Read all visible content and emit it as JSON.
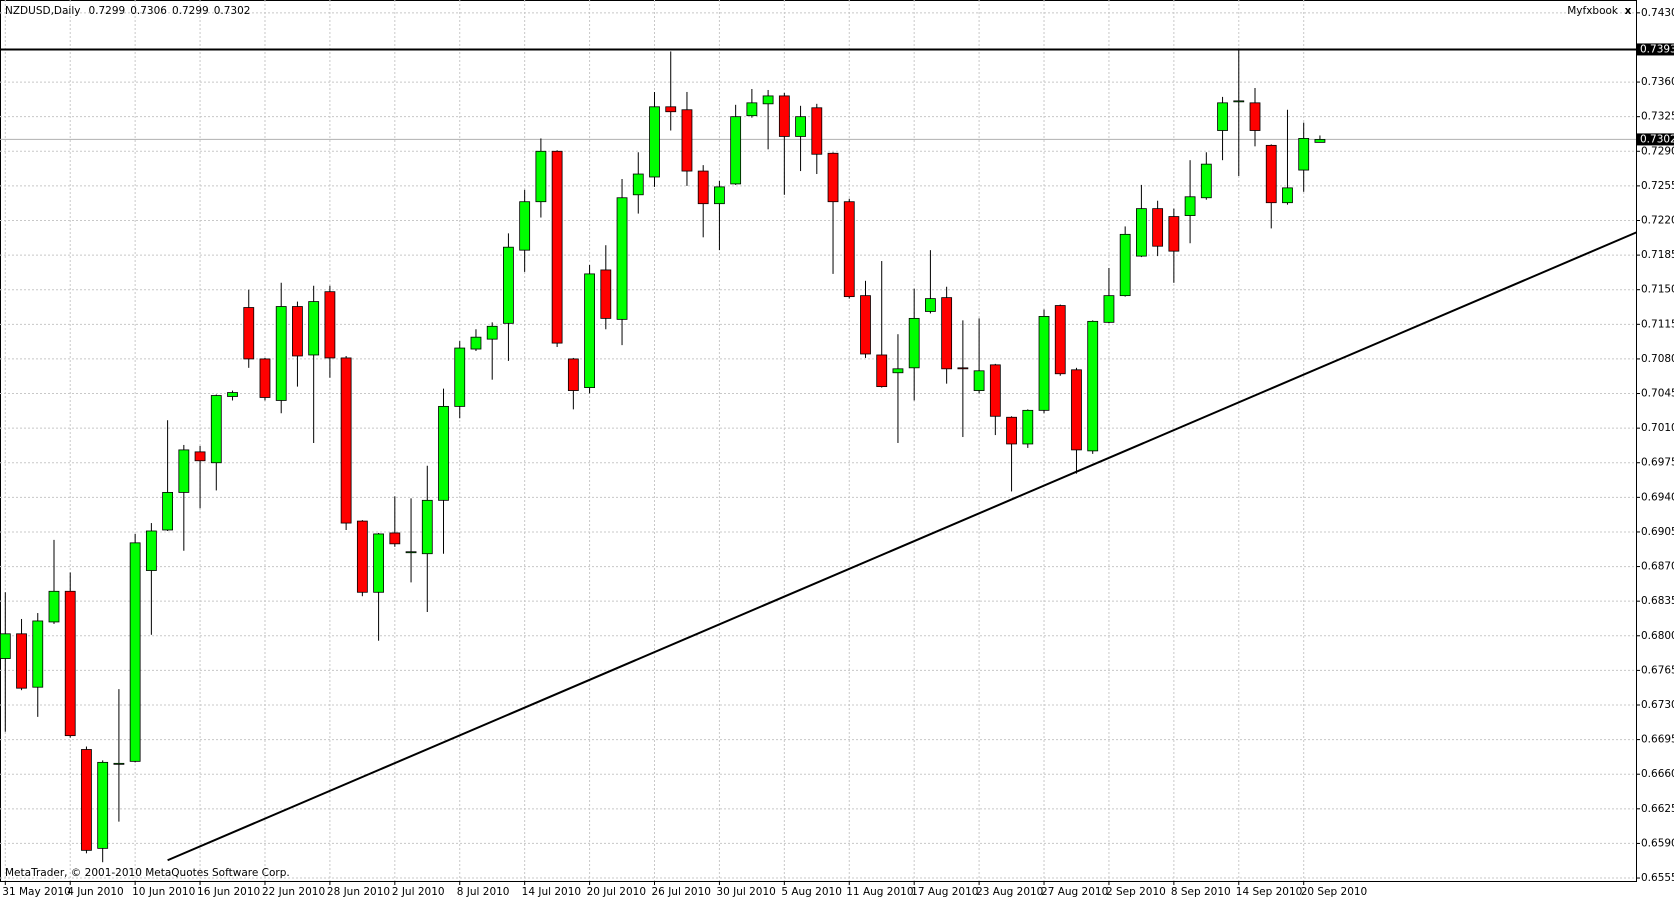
{
  "chart_data": {
    "type": "candlestick",
    "title": "NZDUSD,Daily",
    "panel_label": "Myfxbook",
    "panel_close": "x",
    "watermark": "MetaTrader, © 2001-2010 MetaQuotes Software Corp.",
    "categories": [
      "31 May 2010",
      null,
      null,
      null,
      "4 Jun 2010",
      null,
      null,
      null,
      "10 Jun 2010",
      null,
      null,
      null,
      "16 Jun 2010",
      null,
      null,
      null,
      "22 Jun 2010",
      null,
      null,
      null,
      "28 Jun 2010",
      null,
      null,
      null,
      "2 Jul 2010",
      null,
      null,
      null,
      "8 Jul 2010",
      null,
      null,
      null,
      "14 Jul 2010",
      null,
      null,
      null,
      "20 Jul 2010",
      null,
      null,
      null,
      "26 Jul 2010",
      null,
      null,
      null,
      "30 Jul 2010",
      null,
      null,
      null,
      "5 Aug 2010",
      null,
      null,
      null,
      "11 Aug 2010",
      null,
      null,
      null,
      "17 Aug 2010",
      null,
      null,
      null,
      "23 Aug 2010",
      null,
      null,
      null,
      "27 Aug 2010",
      null,
      null,
      null,
      "2 Sep 2010",
      null,
      null,
      null,
      "8 Sep 2010",
      null,
      null,
      null,
      "14 Sep 2010",
      null,
      null,
      null,
      "20 Sep 2010",
      null
    ],
    "open": [
      0.6777,
      0.6802,
      0.6748,
      0.6814,
      0.6845,
      0.6685,
      0.6585,
      0.667,
      0.6673,
      0.6866,
      0.6907,
      0.6945,
      0.6986,
      0.6975,
      0.7042,
      0.7132,
      0.708,
      0.7038,
      0.7133,
      0.7084,
      0.7148,
      0.7081,
      0.6916,
      0.6844,
      0.6904,
      0.6884,
      0.6883,
      0.6937,
      0.7032,
      0.709,
      0.71,
      0.7116,
      0.719,
      0.7239,
      0.729,
      0.708,
      0.7051,
      0.717,
      0.712,
      0.7246,
      0.7264,
      0.7335,
      0.7332,
      0.727,
      0.7237,
      0.7257,
      0.7326,
      0.7338,
      0.7346,
      0.7305,
      0.7334,
      0.7288,
      0.7239,
      0.7144,
      0.7084,
      0.7066,
      0.7071,
      0.7128,
      0.7142,
      0.7071,
      0.7048,
      0.7074,
      0.7021,
      0.6994,
      0.7028,
      0.7134,
      0.7069,
      0.6987,
      0.7117,
      0.7144,
      0.7184,
      0.7232,
      0.7224,
      0.7225,
      0.7243,
      0.7311,
      0.734,
      0.7339,
      0.7296,
      0.7238,
      0.7271,
      0.7299
    ],
    "high": [
      0.6844,
      0.6817,
      0.6823,
      0.6897,
      0.6864,
      0.6688,
      0.6674,
      0.6746,
      0.6903,
      0.6914,
      0.7018,
      0.6993,
      0.6992,
      0.7044,
      0.7048,
      0.715,
      0.7081,
      0.7157,
      0.7138,
      0.7154,
      0.7154,
      0.7083,
      0.6917,
      0.6904,
      0.6941,
      0.6939,
      0.6972,
      0.705,
      0.7098,
      0.711,
      0.7117,
      0.7207,
      0.7251,
      0.7303,
      0.7291,
      0.7081,
      0.7175,
      0.7195,
      0.7262,
      0.7289,
      0.735,
      0.7391,
      0.735,
      0.7276,
      0.726,
      0.7337,
      0.7353,
      0.7352,
      0.7349,
      0.7336,
      0.7338,
      0.7289,
      0.7242,
      0.7159,
      0.7179,
      0.7105,
      0.7151,
      0.719,
      0.7153,
      0.7119,
      0.7121,
      0.7075,
      0.7022,
      0.7029,
      0.713,
      0.7135,
      0.7071,
      0.7119,
      0.7172,
      0.7214,
      0.7256,
      0.724,
      0.7232,
      0.7281,
      0.7289,
      0.7345,
      0.7392,
      0.7354,
      0.7297,
      0.7332,
      0.7319,
      0.7306
    ],
    "low": [
      0.6703,
      0.6745,
      0.6718,
      0.6812,
      0.6697,
      0.658,
      0.6571,
      0.6612,
      0.6672,
      0.6801,
      0.6906,
      0.6886,
      0.6929,
      0.6947,
      0.7038,
      0.7071,
      0.7038,
      0.7025,
      0.7052,
      0.6995,
      0.7061,
      0.6907,
      0.684,
      0.6795,
      0.689,
      0.6854,
      0.6824,
      0.6883,
      0.702,
      0.7088,
      0.7059,
      0.7078,
      0.7168,
      0.7223,
      0.7092,
      0.7029,
      0.7045,
      0.711,
      0.7094,
      0.7227,
      0.7254,
      0.7311,
      0.7255,
      0.7203,
      0.719,
      0.7256,
      0.7324,
      0.7292,
      0.7246,
      0.727,
      0.7267,
      0.7166,
      0.7141,
      0.7081,
      0.7051,
      0.6995,
      0.7038,
      0.7126,
      0.7055,
      0.7001,
      0.7045,
      0.7003,
      0.6946,
      0.699,
      0.7025,
      0.7063,
      0.6964,
      0.6984,
      0.7116,
      0.7143,
      0.7183,
      0.7184,
      0.7157,
      0.7197,
      0.7241,
      0.7281,
      0.7265,
      0.7295,
      0.7212,
      0.7236,
      0.7249,
      0.7299
    ],
    "close": [
      0.6802,
      0.6747,
      0.6815,
      0.6845,
      0.6699,
      0.6583,
      0.6672,
      0.6671,
      0.6894,
      0.6906,
      0.6945,
      0.6988,
      0.6977,
      0.7043,
      0.7046,
      0.708,
      0.7041,
      0.7133,
      0.7083,
      0.7138,
      0.7081,
      0.6914,
      0.6844,
      0.6903,
      0.6893,
      0.6885,
      0.6937,
      0.7032,
      0.7091,
      0.7102,
      0.7113,
      0.7193,
      0.7239,
      0.729,
      0.7096,
      0.7048,
      0.7166,
      0.7121,
      0.7243,
      0.7267,
      0.7335,
      0.733,
      0.727,
      0.7237,
      0.7254,
      0.7325,
      0.7339,
      0.7346,
      0.7305,
      0.7325,
      0.7287,
      0.7239,
      0.7143,
      0.7085,
      0.7052,
      0.707,
      0.7121,
      0.7141,
      0.707,
      0.707,
      0.7068,
      0.7022,
      0.6994,
      0.7028,
      0.7123,
      0.7065,
      0.6988,
      0.7118,
      0.7144,
      0.7206,
      0.7232,
      0.7194,
      0.7189,
      0.7244,
      0.7277,
      0.7339,
      0.7341,
      0.7311,
      0.7238,
      0.7253,
      0.7303,
      0.7302
    ],
    "up_color": "#00ff00",
    "down_color": "#ff0000",
    "ylim": [
      0.6552,
      0.7443
    ],
    "yticks": [
      {
        "value": 0.743,
        "label": "0.7430"
      },
      {
        "value": 0.736,
        "label": "0.7360"
      },
      0.7325,
      {
        "value": 0.729,
        "label": "0.7290"
      },
      0.7255,
      {
        "value": 0.722,
        "label": "0.7220"
      },
      0.7185,
      {
        "value": 0.715,
        "label": "0.7150"
      },
      0.7115,
      {
        "value": 0.708,
        "label": "0.7080"
      },
      0.7045,
      {
        "value": 0.701,
        "label": "0.7010"
      },
      0.6975,
      {
        "value": 0.694,
        "label": "0.6940"
      },
      0.6905,
      {
        "value": 0.687,
        "label": "0.6870"
      },
      0.6835,
      {
        "value": 0.68,
        "label": "0.6800"
      },
      0.6765,
      {
        "value": 0.673,
        "label": "0.6730"
      },
      0.6695,
      {
        "value": 0.666,
        "label": "0.6660"
      },
      0.6625,
      {
        "value": 0.659,
        "label": "0.6590"
      },
      0.6555
    ],
    "grid": true,
    "hline": 0.7393,
    "trendline": {
      "x": [
        10,
        100.5
      ],
      "values": [
        0.6573,
        0.7208
      ]
    }
  }
}
